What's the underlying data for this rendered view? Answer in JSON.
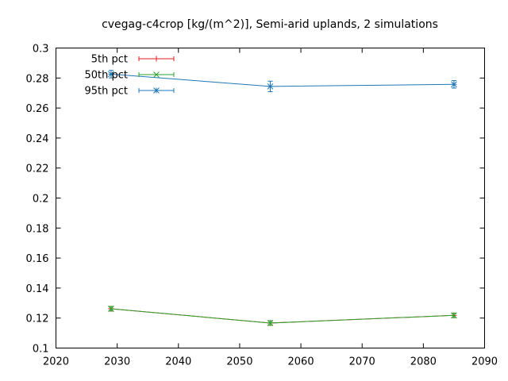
{
  "chart_data": {
    "type": "line",
    "title": "cvegag-c4crop [kg/(m^2)], Semi-arid uplands, 2 simulations",
    "xlabel": "",
    "ylabel": "",
    "xlim": [
      2020,
      2090
    ],
    "ylim": [
      0.1,
      0.3
    ],
    "x_ticks": [
      2020,
      2030,
      2040,
      2050,
      2060,
      2070,
      2080,
      2090
    ],
    "y_ticks": [
      0.1,
      0.12,
      0.14,
      0.16,
      0.18,
      0.2,
      0.22,
      0.24,
      0.26,
      0.28,
      0.3
    ],
    "grid": false,
    "legend_position": "top-left",
    "series": [
      {
        "name": "5th pct",
        "color": "#e41a1c",
        "marker": "plus",
        "x": [
          2029,
          2055,
          2085
        ],
        "y": [
          0.1262,
          0.1167,
          0.1218
        ],
        "err": [
          0.0015,
          0.0015,
          0.0015
        ]
      },
      {
        "name": "50th pct",
        "color": "#2ca02c",
        "marker": "x",
        "x": [
          2029,
          2055,
          2085
        ],
        "y": [
          0.1262,
          0.1167,
          0.1218
        ],
        "err": [
          0.0015,
          0.0015,
          0.0015
        ]
      },
      {
        "name": "95th pct",
        "color": "#1f78b4",
        "marker": "star",
        "x": [
          2029,
          2055,
          2085
        ],
        "y": [
          0.2826,
          0.2744,
          0.2758
        ],
        "err": [
          0.0025,
          0.0035,
          0.0025
        ]
      }
    ]
  }
}
